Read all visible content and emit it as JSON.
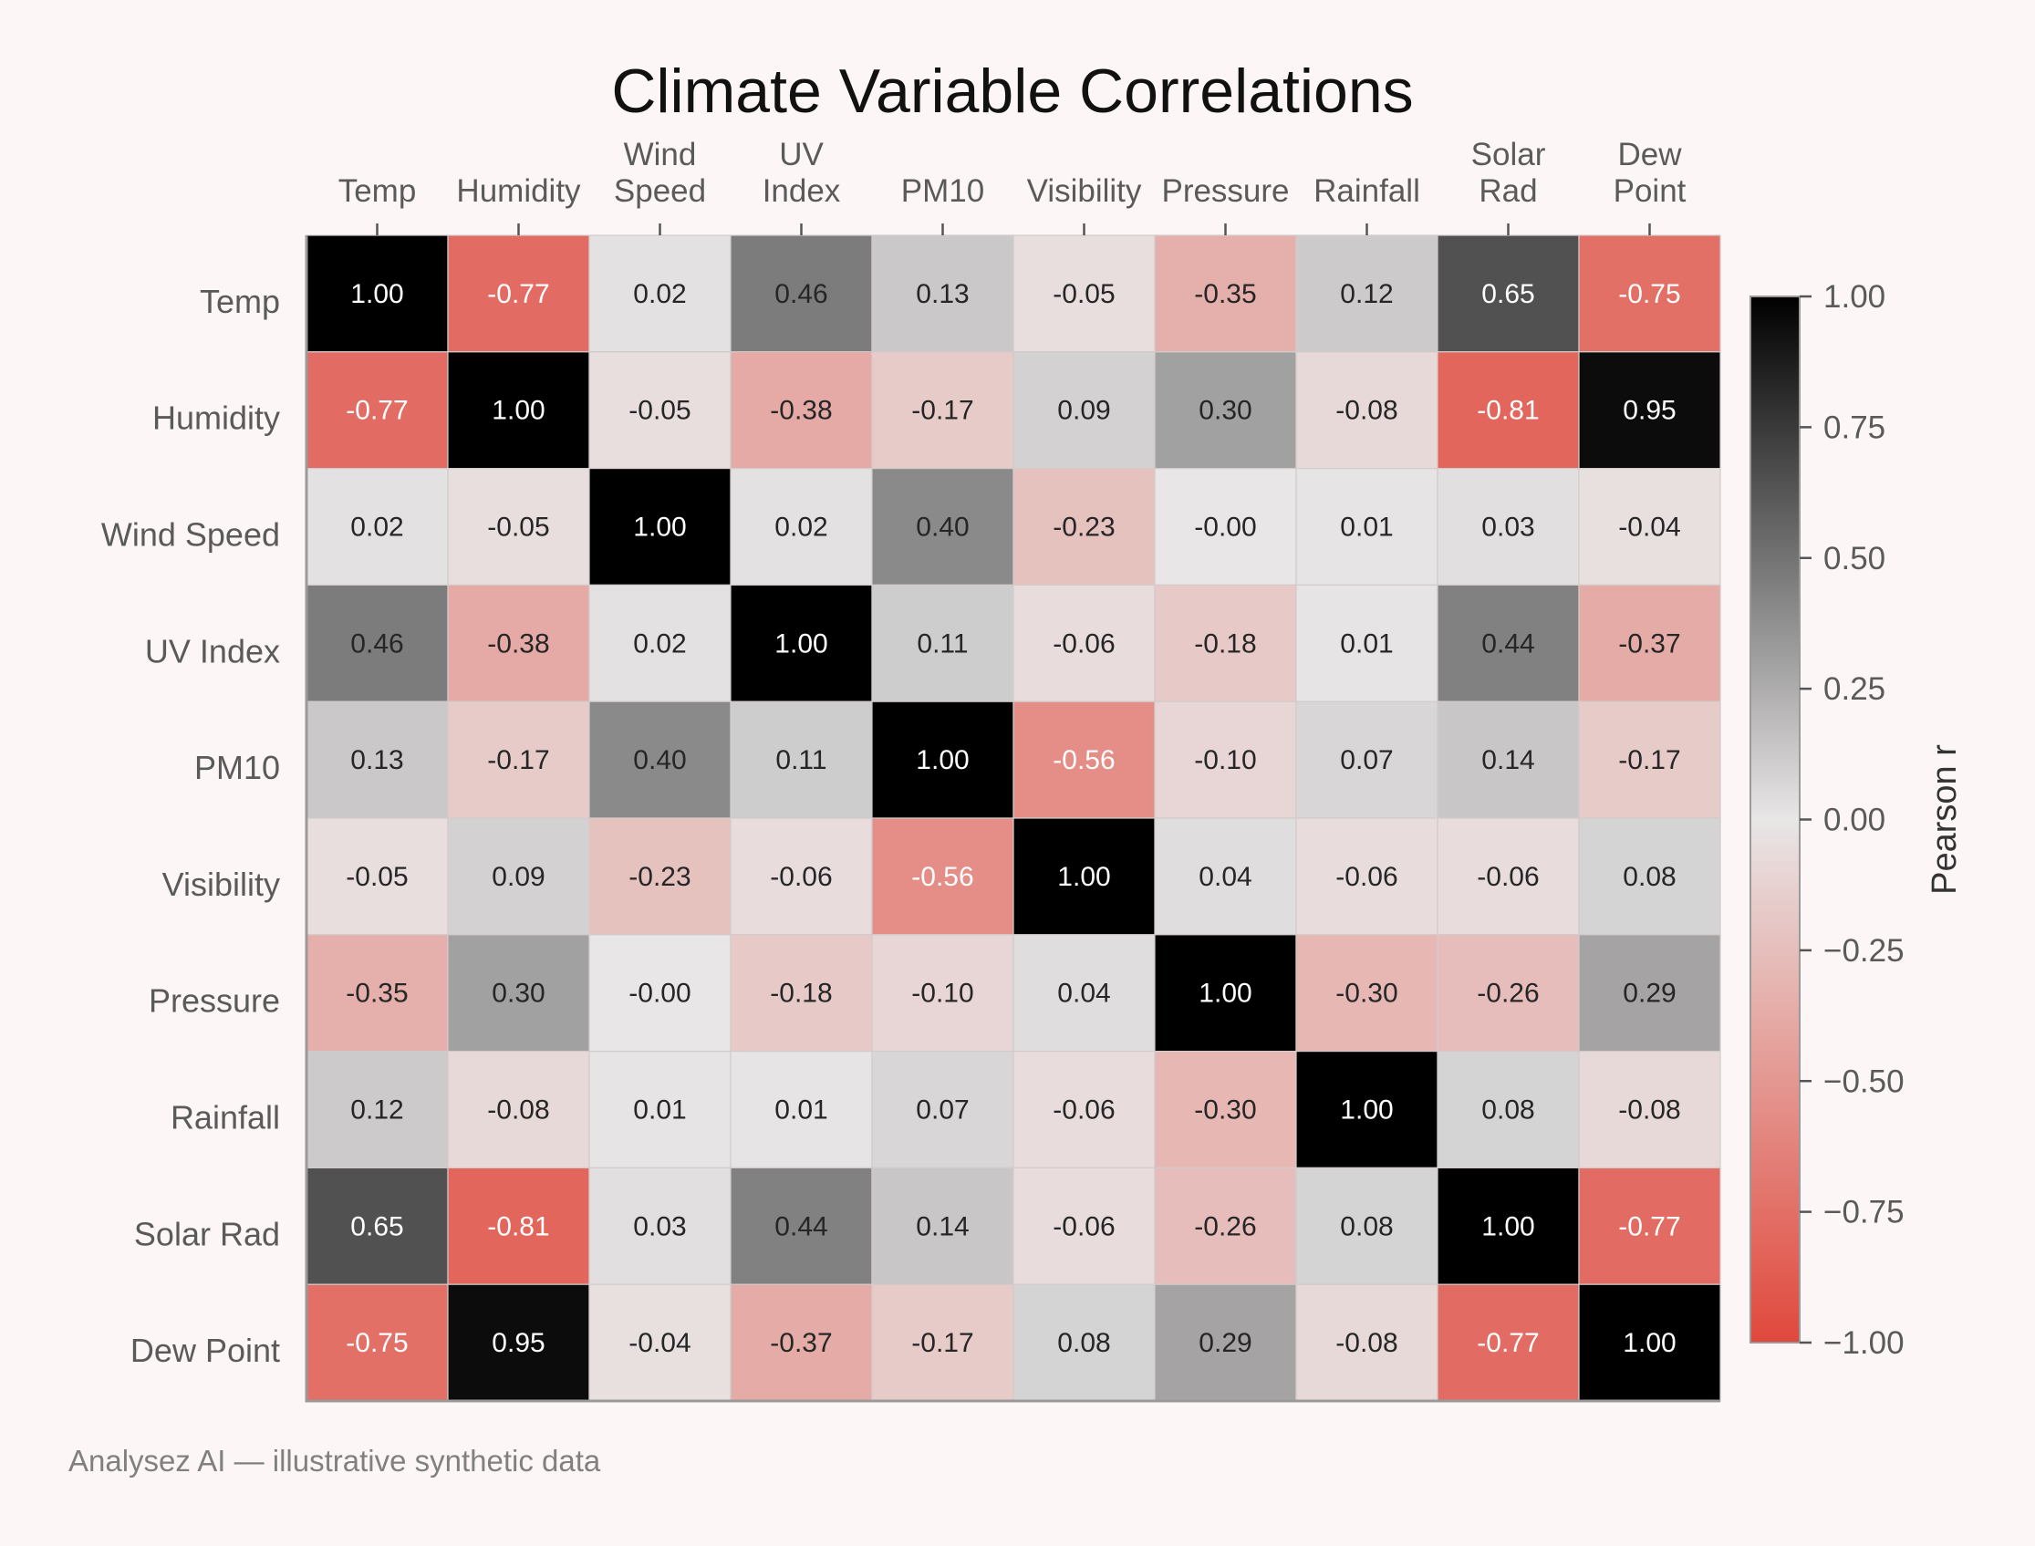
{
  "chart_data": {
    "type": "heatmap",
    "title": "Climate Variable Correlations",
    "x_labels": [
      [
        "Temp"
      ],
      [
        "Humidity"
      ],
      [
        "Wind",
        "Speed"
      ],
      [
        "UV",
        "Index"
      ],
      [
        "PM10"
      ],
      [
        "Visibility"
      ],
      [
        "Pressure"
      ],
      [
        "Rainfall"
      ],
      [
        "Solar",
        "Rad"
      ],
      [
        "Dew",
        "Point"
      ]
    ],
    "y_labels": [
      "Temp",
      "Humidity",
      "Wind Speed",
      "UV Index",
      "PM10",
      "Visibility",
      "Pressure",
      "Rainfall",
      "Solar Rad",
      "Dew Point"
    ],
    "values": [
      [
        1.0,
        -0.77,
        0.02,
        0.46,
        0.13,
        -0.05,
        -0.35,
        0.12,
        0.65,
        -0.75
      ],
      [
        -0.77,
        1.0,
        -0.05,
        -0.38,
        -0.17,
        0.09,
        0.3,
        -0.08,
        -0.81,
        0.95
      ],
      [
        0.02,
        -0.05,
        1.0,
        0.02,
        0.4,
        -0.23,
        -0.0,
        0.01,
        0.03,
        -0.04
      ],
      [
        0.46,
        -0.38,
        0.02,
        1.0,
        0.11,
        -0.06,
        -0.18,
        0.01,
        0.44,
        -0.37
      ],
      [
        0.13,
        -0.17,
        0.4,
        0.11,
        1.0,
        -0.56,
        -0.1,
        0.07,
        0.14,
        -0.17
      ],
      [
        -0.05,
        0.09,
        -0.23,
        -0.06,
        -0.56,
        1.0,
        0.04,
        -0.06,
        -0.06,
        0.08
      ],
      [
        -0.35,
        0.3,
        -0.0,
        -0.18,
        -0.1,
        0.04,
        1.0,
        -0.3,
        -0.26,
        0.29
      ],
      [
        0.12,
        -0.08,
        0.01,
        0.01,
        0.07,
        -0.06,
        -0.3,
        1.0,
        0.08,
        -0.08
      ],
      [
        0.65,
        -0.81,
        0.03,
        0.44,
        0.14,
        -0.06,
        -0.26,
        0.08,
        1.0,
        -0.77
      ],
      [
        -0.75,
        0.95,
        -0.04,
        -0.37,
        -0.17,
        0.08,
        0.29,
        -0.08,
        -0.77,
        1.0
      ]
    ],
    "value_labels": [
      [
        "1.00",
        "-0.77",
        "0.02",
        "0.46",
        "0.13",
        "-0.05",
        "-0.35",
        "0.12",
        "0.65",
        "-0.75"
      ],
      [
        "-0.77",
        "1.00",
        "-0.05",
        "-0.38",
        "-0.17",
        "0.09",
        "0.30",
        "-0.08",
        "-0.81",
        "0.95"
      ],
      [
        "0.02",
        "-0.05",
        "1.00",
        "0.02",
        "0.40",
        "-0.23",
        "-0.00",
        "0.01",
        "0.03",
        "-0.04"
      ],
      [
        "0.46",
        "-0.38",
        "0.02",
        "1.00",
        "0.11",
        "-0.06",
        "-0.18",
        "0.01",
        "0.44",
        "-0.37"
      ],
      [
        "0.13",
        "-0.17",
        "0.40",
        "0.11",
        "1.00",
        "-0.56",
        "-0.10",
        "0.07",
        "0.14",
        "-0.17"
      ],
      [
        "-0.05",
        "0.09",
        "-0.23",
        "-0.06",
        "-0.56",
        "1.00",
        "0.04",
        "-0.06",
        "-0.06",
        "0.08"
      ],
      [
        "-0.35",
        "0.30",
        "-0.00",
        "-0.18",
        "-0.10",
        "0.04",
        "1.00",
        "-0.30",
        "-0.26",
        "0.29"
      ],
      [
        "0.12",
        "-0.08",
        "0.01",
        "0.01",
        "0.07",
        "-0.06",
        "-0.30",
        "1.00",
        "0.08",
        "-0.08"
      ],
      [
        "0.65",
        "-0.81",
        "0.03",
        "0.44",
        "0.14",
        "-0.06",
        "-0.26",
        "0.08",
        "1.00",
        "-0.77"
      ],
      [
        "-0.75",
        "0.95",
        "-0.04",
        "-0.37",
        "-0.17",
        "0.08",
        "0.29",
        "-0.08",
        "-0.77",
        "1.00"
      ]
    ],
    "colorbar": {
      "label": "Pearson r",
      "range": [
        -1.0,
        1.0
      ],
      "ticks": [
        1.0,
        0.75,
        0.5,
        0.25,
        0.0,
        -0.25,
        -0.5,
        -0.75,
        -1.0
      ],
      "tick_labels": [
        "1.00",
        "0.75",
        "0.50",
        "0.25",
        "0.00",
        "−0.25",
        "−0.50",
        "−0.75",
        "−1.00"
      ],
      "colors": {
        "min": "#e0483c",
        "mid": "#e8e6e6",
        "max": "#000000"
      }
    },
    "x_axis_position": "top",
    "grid": false
  },
  "footer": "Analysez AI — illustrative synthetic data"
}
